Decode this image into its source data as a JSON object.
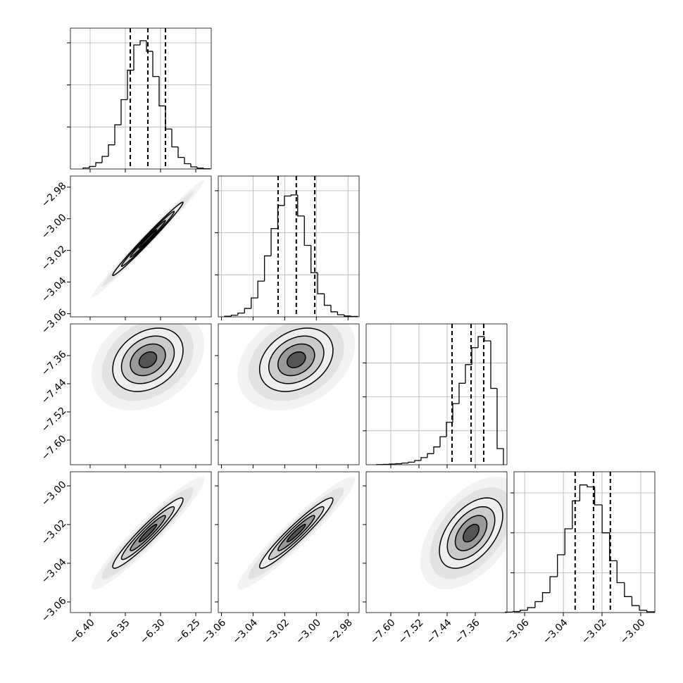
{
  "chart_data": {
    "type": "corner",
    "levels": [
      0.5,
      1,
      1.5,
      2
    ],
    "parameters": [
      {
        "lim": [
          -6.428,
          -6.228
        ],
        "ticks": [
          {
            "value": -6.4,
            "label": "−6.40"
          },
          {
            "value": -6.35,
            "label": "−6.35"
          },
          {
            "value": -6.3,
            "label": "−6.30"
          },
          {
            "value": -6.25,
            "label": "−6.25"
          }
        ],
        "quantiles": [
          -6.343,
          -6.318,
          -6.293
        ],
        "hist": {
          "bins": [
            -6.41,
            -6.401,
            -6.392,
            -6.383,
            -6.374,
            -6.365,
            -6.356,
            -6.347,
            -6.338,
            -6.329,
            -6.32,
            -6.311,
            -6.302,
            -6.293,
            -6.284,
            -6.275,
            -6.266,
            -6.257,
            -6.248,
            -6.239,
            -6.23
          ],
          "counts": [
            5,
            12,
            30,
            60,
            115,
            210,
            330,
            470,
            590,
            610,
            560,
            440,
            300,
            190,
            105,
            55,
            25,
            10,
            4,
            1
          ],
          "ylim": [
            0,
            670
          ],
          "yticks": [
            200,
            400,
            600
          ]
        }
      },
      {
        "lim": [
          -3.062,
          -2.973
        ],
        "ticks": [
          {
            "value": -3.06,
            "label": "−3.06"
          },
          {
            "value": -3.04,
            "label": "−3.04"
          },
          {
            "value": -3.02,
            "label": "−3.02"
          },
          {
            "value": -3.0,
            "label": "−3.00"
          },
          {
            "value": -2.98,
            "label": "−2.98"
          }
        ],
        "quantiles": [
          -3.0242,
          -3.0127,
          -3.001
        ],
        "hist": {
          "bins": [
            -3.058,
            -3.0538,
            -3.0496,
            -3.0454,
            -3.0412,
            -3.037,
            -3.0328,
            -3.0286,
            -3.0244,
            -3.0202,
            -3.016,
            -3.0118,
            -3.0076,
            -3.0034,
            -2.9992,
            -2.995,
            -2.9908,
            -2.9866,
            -2.9824,
            -2.9782,
            -2.974
          ],
          "counts": [
            3,
            8,
            18,
            40,
            90,
            170,
            290,
            420,
            530,
            575,
            580,
            480,
            340,
            210,
            110,
            55,
            24,
            10,
            4,
            2
          ],
          "ylim": [
            0,
            670
          ],
          "yticks": [
            200,
            400,
            600
          ]
        }
      },
      {
        "lim": [
          -7.67,
          -7.27
        ],
        "ticks": [
          {
            "value": -7.6,
            "label": "−7.60"
          },
          {
            "value": -7.52,
            "label": "−7.52"
          },
          {
            "value": -7.44,
            "label": "−7.44"
          },
          {
            "value": -7.36,
            "label": "−7.36"
          }
        ],
        "quantiles": [
          -7.426,
          -7.372,
          -7.336
        ],
        "hist": {
          "bins": [
            -7.64,
            -7.622,
            -7.604,
            -7.586,
            -7.568,
            -7.55,
            -7.532,
            -7.514,
            -7.496,
            -7.478,
            -7.46,
            -7.442,
            -7.424,
            -7.406,
            -7.388,
            -7.37,
            -7.352,
            -7.334,
            -7.316,
            -7.298,
            -7.28
          ],
          "counts": [
            1,
            2,
            4,
            6,
            10,
            15,
            25,
            42,
            65,
            105,
            165,
            250,
            360,
            480,
            590,
            690,
            755,
            730,
            450,
            95
          ],
          "ylim": [
            0,
            830
          ],
          "yticks": [
            200,
            400,
            600
          ]
        }
      },
      {
        "lim": [
          -3.0655,
          -2.9927
        ],
        "ticks": [
          {
            "value": -3.06,
            "label": "−3.06"
          },
          {
            "value": -3.04,
            "label": "−3.04"
          },
          {
            "value": -3.02,
            "label": "−3.02"
          },
          {
            "value": -3.0,
            "label": "−3.00"
          }
        ],
        "quantiles": [
          -3.0339,
          -3.0244,
          -3.0157
        ],
        "hist": {
          "bins": [
            -3.07,
            -3.06615,
            -3.0623,
            -3.05845,
            -3.0546,
            -3.05075,
            -3.0469,
            -3.04305,
            -3.0392,
            -3.03535,
            -3.0315,
            -3.02765,
            -3.0238,
            -3.01995,
            -3.0161,
            -3.01225,
            -3.0084,
            -3.00455,
            -3.0007,
            -2.99685,
            -2.993
          ],
          "counts": [
            2,
            5,
            12,
            25,
            55,
            100,
            180,
            290,
            420,
            560,
            640,
            630,
            540,
            400,
            260,
            150,
            80,
            35,
            12,
            4
          ],
          "ylim": [
            0,
            706
          ],
          "yticks": [
            200,
            400,
            600
          ]
        }
      }
    ],
    "pairs": [
      {
        "x": 0,
        "y": 1,
        "rho": 0.99
      },
      {
        "x": 0,
        "y": 2,
        "rho": 0.3
      },
      {
        "x": 1,
        "y": 2,
        "rho": 0.3
      },
      {
        "x": 0,
        "y": 3,
        "rho": 0.95
      },
      {
        "x": 1,
        "y": 3,
        "rho": 0.95
      },
      {
        "x": 2,
        "y": 3,
        "rho": 0.5
      }
    ]
  }
}
